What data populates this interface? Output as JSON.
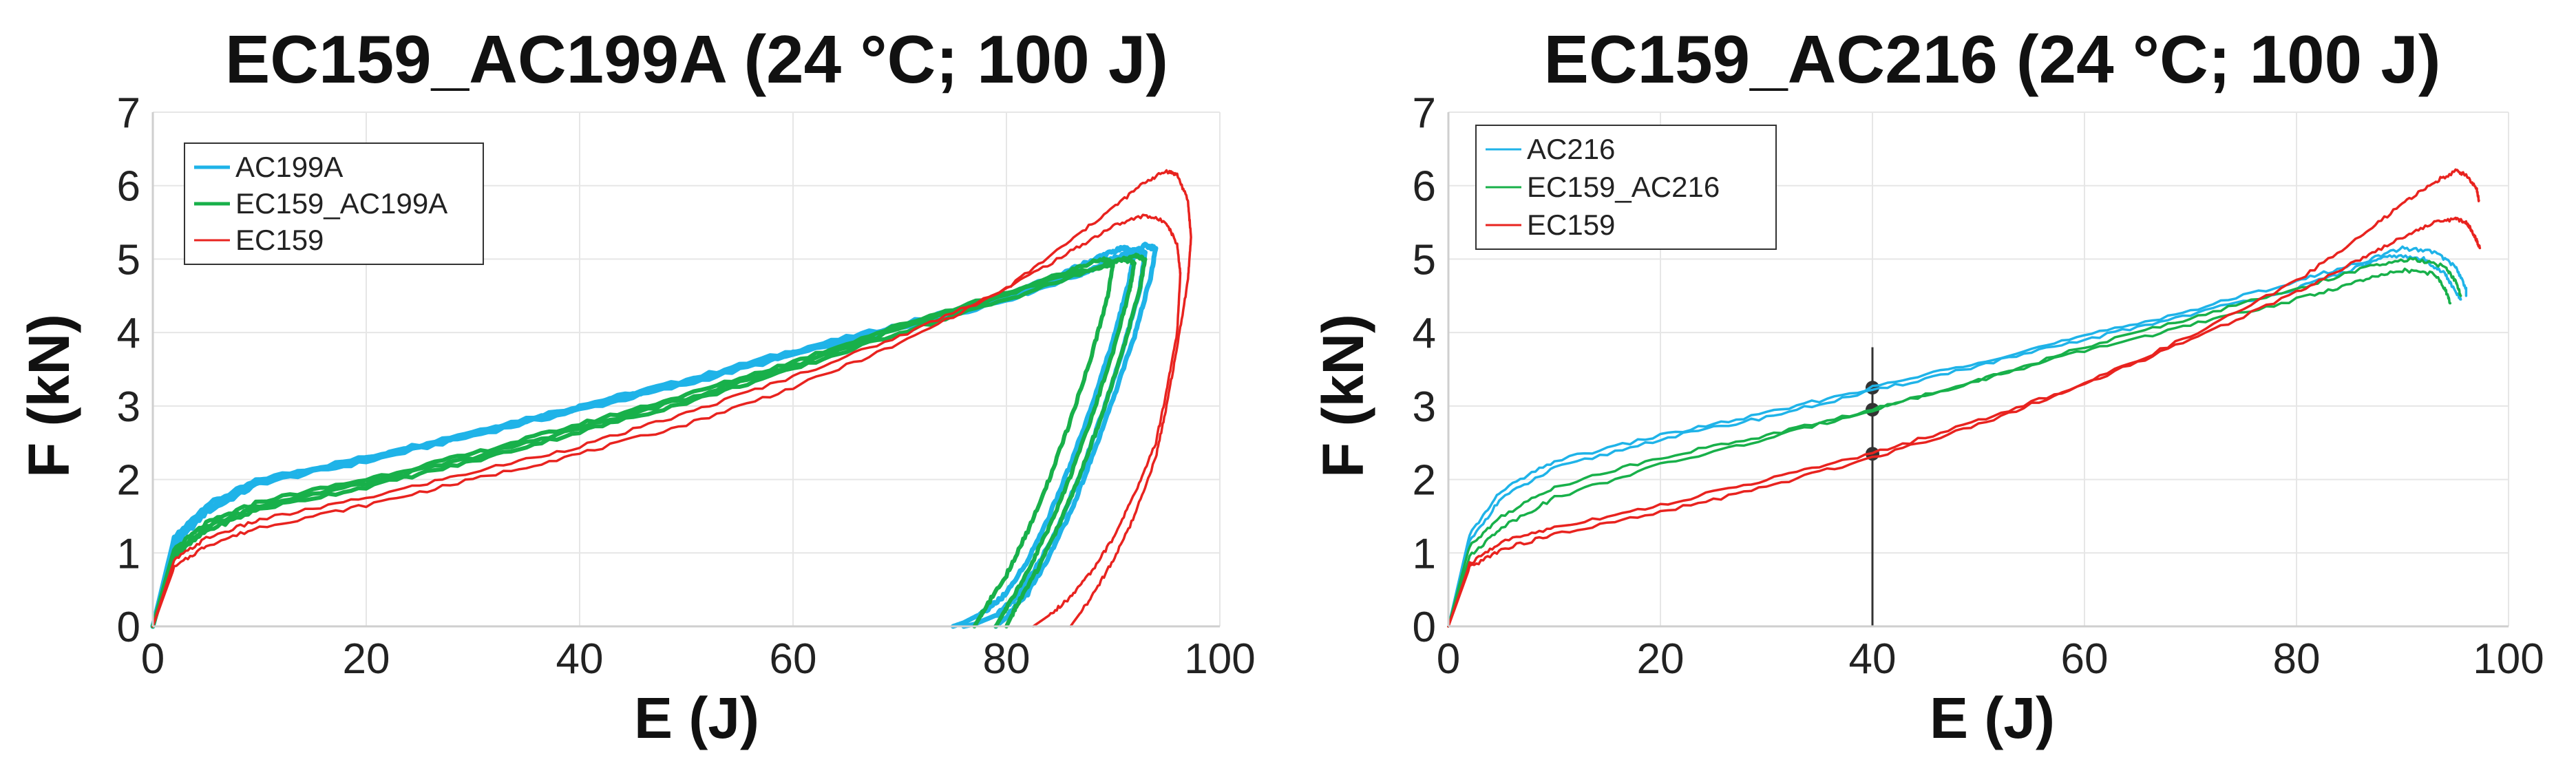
{
  "chart_data": [
    {
      "type": "line",
      "title": "EC159_AC199A (24 °C; 100 J)",
      "xlabel": "E (J)",
      "ylabel": "F (kN)",
      "xlim": [
        0,
        100
      ],
      "ylim": [
        0,
        7
      ],
      "xticks": [
        "0",
        "20",
        "40",
        "60",
        "80",
        "100"
      ],
      "yticks": [
        "0",
        "1",
        "2",
        "3",
        "4",
        "5",
        "6",
        "7"
      ],
      "grid": true,
      "legend_position": "top-left",
      "series": [
        {
          "name": "AC199A",
          "color": "#1fb3e8",
          "width": 7,
          "curves": [
            {
              "x": [
                0,
                2,
                5,
                10,
                20,
                30,
                40,
                50,
                60,
                70,
                80,
                86,
                89,
                91,
                92,
                91.5,
                90,
                88,
                86,
                84,
                82,
                80,
                78,
                76,
                75
              ],
              "y": [
                0,
                1.2,
                1.65,
                2.0,
                2.3,
                2.65,
                3.0,
                3.35,
                3.75,
                4.1,
                4.5,
                4.85,
                5.05,
                5.15,
                5.1,
                4.7,
                3.9,
                3.0,
                2.2,
                1.5,
                0.9,
                0.45,
                0.2,
                0.05,
                0
              ]
            },
            {
              "x": [
                0,
                2,
                5,
                10,
                20,
                30,
                40,
                50,
                60,
                70,
                80,
                87,
                90,
                92,
                93,
                92.5,
                91,
                89,
                87,
                85,
                83,
                81,
                79,
                77,
                76
              ],
              "y": [
                0,
                1.1,
                1.55,
                1.95,
                2.25,
                2.6,
                2.95,
                3.3,
                3.7,
                4.05,
                4.45,
                4.8,
                5.0,
                5.12,
                5.08,
                4.6,
                3.8,
                2.9,
                2.1,
                1.4,
                0.85,
                0.4,
                0.15,
                0.03,
                0
              ]
            },
            {
              "x": [
                0,
                2,
                5,
                10,
                20,
                30,
                40,
                50,
                60,
                70,
                80,
                88,
                91,
                93,
                94,
                93.5,
                92,
                90,
                88,
                86,
                84,
                82,
                80,
                79
              ],
              "y": [
                0,
                1.15,
                1.6,
                1.98,
                2.28,
                2.62,
                2.98,
                3.33,
                3.72,
                4.08,
                4.48,
                4.85,
                5.05,
                5.18,
                5.15,
                4.75,
                3.95,
                3.1,
                2.3,
                1.55,
                0.95,
                0.45,
                0.12,
                0
              ]
            }
          ]
        },
        {
          "name": "EC159_AC199A",
          "color": "#18b04a",
          "width": 6,
          "curves": [
            {
              "x": [
                0,
                2,
                5,
                10,
                20,
                30,
                40,
                50,
                60,
                70,
                80,
                86,
                89,
                90,
                89.5,
                88,
                86,
                84,
                82,
                80,
                78,
                77
              ],
              "y": [
                0,
                1.0,
                1.35,
                1.65,
                1.95,
                2.3,
                2.7,
                3.1,
                3.55,
                4.05,
                4.5,
                4.85,
                5.0,
                4.95,
                4.5,
                3.7,
                2.8,
                2.0,
                1.3,
                0.7,
                0.25,
                0
              ]
            },
            {
              "x": [
                0,
                2,
                5,
                10,
                20,
                30,
                40,
                50,
                60,
                70,
                80,
                88,
                91,
                92,
                91.5,
                90,
                88,
                86,
                84,
                82,
                80,
                79
              ],
              "y": [
                0,
                0.95,
                1.3,
                1.6,
                1.9,
                2.25,
                2.65,
                3.05,
                3.5,
                4.0,
                4.45,
                4.85,
                5.0,
                4.95,
                4.55,
                3.75,
                2.85,
                2.05,
                1.35,
                0.75,
                0.25,
                0
              ]
            },
            {
              "x": [
                0,
                2,
                5,
                10,
                20,
                30,
                40,
                50,
                60,
                70,
                80,
                89,
                92,
                93,
                92.5,
                91,
                89,
                87,
                85,
                83,
                81,
                80
              ],
              "y": [
                0,
                1.05,
                1.4,
                1.7,
                2.0,
                2.35,
                2.75,
                3.15,
                3.6,
                4.1,
                4.55,
                4.9,
                5.05,
                5.0,
                4.6,
                3.8,
                2.9,
                2.1,
                1.4,
                0.8,
                0.3,
                0
              ]
            }
          ]
        },
        {
          "name": "EC159",
          "color": "#e8231f",
          "width": 3.5,
          "curves": [
            {
              "x": [
                0,
                2,
                5,
                10,
                20,
                30,
                40,
                50,
                60,
                70,
                80,
                86,
                90,
                93,
                95,
                96,
                96.3,
                96,
                95,
                94,
                92,
                90,
                88,
                86,
                84,
                82.5
              ],
              "y": [
                0,
                0.9,
                1.2,
                1.45,
                1.75,
                2.1,
                2.45,
                2.9,
                3.4,
                3.95,
                4.6,
                5.1,
                5.45,
                5.6,
                5.5,
                5.2,
                4.8,
                4.0,
                3.2,
                2.5,
                1.8,
                1.2,
                0.75,
                0.4,
                0.15,
                0
              ]
            },
            {
              "x": [
                0,
                2,
                5,
                10,
                20,
                30,
                40,
                50,
                60,
                70,
                80,
                86,
                90,
                93,
                95,
                96,
                97,
                97.3,
                97,
                96,
                95,
                94,
                92,
                90,
                88,
                86
              ],
              "y": [
                0,
                0.8,
                1.1,
                1.35,
                1.65,
                2.0,
                2.35,
                2.75,
                3.25,
                3.85,
                4.6,
                5.25,
                5.7,
                6.05,
                6.2,
                6.15,
                5.8,
                5.3,
                4.7,
                3.8,
                3.0,
                2.3,
                1.5,
                0.9,
                0.4,
                0
              ]
            }
          ]
        }
      ]
    },
    {
      "type": "line",
      "title": "EC159_AC216 (24 °C; 100 J)",
      "xlabel": "E (J)",
      "ylabel": "F (kN)",
      "xlim": [
        0,
        100
      ],
      "ylim": [
        0,
        7
      ],
      "xticks": [
        "0",
        "20",
        "40",
        "60",
        "80",
        "100"
      ],
      "yticks": [
        "0",
        "1",
        "2",
        "3",
        "4",
        "5",
        "6",
        "7"
      ],
      "grid": true,
      "legend_position": "top-left",
      "annotation": {
        "type": "vertical-line",
        "x": 40,
        "points": [
          3.25,
          2.95,
          2.35
        ]
      },
      "series": [
        {
          "name": "AC216",
          "color": "#1fb3e8",
          "width": 3.5,
          "curves": [
            {
              "x": [
                0,
                2,
                5,
                10,
                20,
                30,
                40,
                50,
                60,
                70,
                80,
                86,
                90,
                93,
                95,
                96,
                96
              ],
              "y": [
                0,
                1.25,
                1.85,
                2.25,
                2.6,
                2.9,
                3.25,
                3.6,
                3.95,
                4.3,
                4.7,
                4.95,
                5.15,
                5.1,
                4.9,
                4.6,
                4.5
              ]
            },
            {
              "x": [
                0,
                2,
                5,
                10,
                20,
                30,
                40,
                50,
                60,
                70,
                80,
                86,
                89,
                92,
                94,
                95,
                95.5
              ],
              "y": [
                0,
                1.15,
                1.75,
                2.15,
                2.55,
                2.85,
                3.2,
                3.55,
                3.9,
                4.25,
                4.6,
                4.9,
                5.05,
                5.0,
                4.8,
                4.55,
                4.45
              ]
            }
          ]
        },
        {
          "name": "EC159_AC216",
          "color": "#18b04a",
          "width": 3.5,
          "curves": [
            {
              "x": [
                0,
                2,
                5,
                10,
                20,
                30,
                40,
                50,
                60,
                70,
                80,
                86,
                90,
                93,
                94,
                94.5
              ],
              "y": [
                0,
                0.95,
                1.35,
                1.75,
                2.2,
                2.55,
                2.95,
                3.35,
                3.75,
                4.1,
                4.45,
                4.7,
                4.85,
                4.8,
                4.6,
                4.4
              ]
            },
            {
              "x": [
                0,
                2,
                5,
                10,
                20,
                30,
                40,
                50,
                60,
                70,
                80,
                87,
                91,
                94,
                95,
                95.5
              ],
              "y": [
                0,
                1.1,
                1.5,
                1.9,
                2.3,
                2.6,
                2.95,
                3.35,
                3.8,
                4.2,
                4.6,
                4.9,
                5.0,
                4.9,
                4.7,
                4.5
              ]
            }
          ]
        },
        {
          "name": "EC159",
          "color": "#e8231f",
          "width": 3.5,
          "curves": [
            {
              "x": [
                0,
                2,
                5,
                10,
                20,
                30,
                40,
                50,
                60,
                70,
                80,
                86,
                90,
                93,
                95,
                96,
                96.5,
                97,
                97.3
              ],
              "y": [
                0,
                0.85,
                1.15,
                1.35,
                1.65,
                2.0,
                2.35,
                2.8,
                3.3,
                3.9,
                4.55,
                5.0,
                5.3,
                5.5,
                5.55,
                5.5,
                5.4,
                5.25,
                5.15
              ]
            },
            {
              "x": [
                0,
                2,
                5,
                10,
                20,
                30,
                40,
                50,
                60,
                70,
                80,
                86,
                90,
                93,
                95,
                96,
                97,
                97.2
              ],
              "y": [
                0,
                0.8,
                1.05,
                1.25,
                1.55,
                1.9,
                2.3,
                2.75,
                3.3,
                3.95,
                4.7,
                5.3,
                5.75,
                6.05,
                6.2,
                6.15,
                5.95,
                5.8
              ]
            }
          ]
        }
      ]
    }
  ]
}
